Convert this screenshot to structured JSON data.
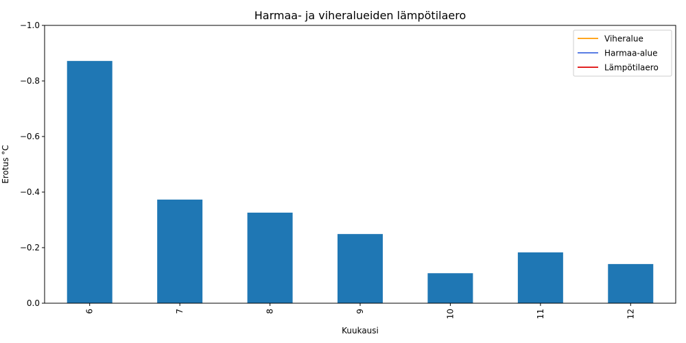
{
  "chart_data": {
    "type": "bar",
    "title": "Harmaa- ja viheralueiden lämpötilaero",
    "xlabel": "Kuukausi",
    "ylabel": "Erotus °C",
    "categories": [
      "6",
      "7",
      "8",
      "9",
      "10",
      "11",
      "12"
    ],
    "values": [
      -0.872,
      -0.373,
      -0.326,
      -0.249,
      -0.108,
      -0.183,
      -0.141
    ],
    "ylim": [
      0.0,
      -1.0
    ],
    "y_inverted": true,
    "yticks": [
      0.0,
      -0.2,
      -0.4,
      -0.6,
      -0.8,
      -1.0
    ],
    "ytick_labels": [
      "0.0",
      "−0.2",
      "−0.4",
      "−0.6",
      "−0.8",
      "−1.0"
    ],
    "bar_color": "#1f77b4",
    "zero_line": "dashed",
    "grid": false,
    "legend": {
      "placement": "upper right",
      "entries": [
        {
          "label": "Viheralue",
          "color": "#ff9900"
        },
        {
          "label": "Harmaa-alue",
          "color": "#4169e1"
        },
        {
          "label": "Lämpötilaero",
          "color": "#dd0000"
        }
      ]
    }
  }
}
